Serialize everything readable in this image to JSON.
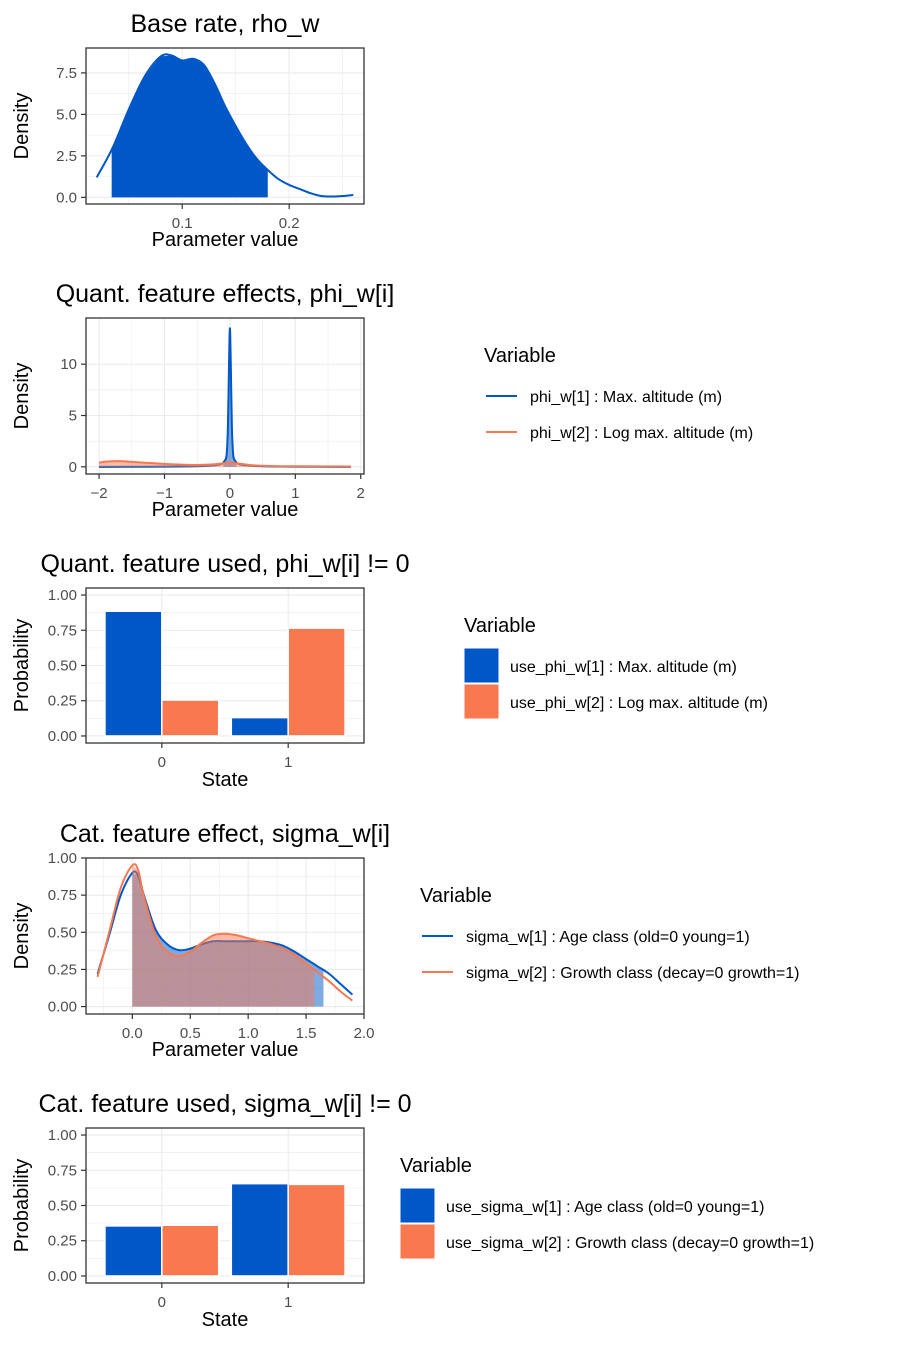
{
  "colors": {
    "series1": "#0057C8",
    "series2": "#F8794F",
    "grid": "#EBEBEB",
    "panel_border": "#333333",
    "tick_text": "#4D4D4D"
  },
  "chart_data": [
    {
      "type": "area",
      "title": "Base rate, rho_w",
      "xlabel": "Parameter value",
      "ylabel": "Density",
      "xlim": [
        0.01,
        0.27
      ],
      "ylim": [
        -0.4,
        9.0
      ],
      "xticks": [
        0.1,
        0.2
      ],
      "xtick_labels": [
        "0.1",
        "0.2"
      ],
      "yticks": [
        0,
        2.5,
        5,
        7.5
      ],
      "ytick_labels": [
        "0.0",
        "2.5",
        "5.0",
        "7.5"
      ],
      "series": [
        {
          "x": [
            0.02,
            0.035,
            0.05,
            0.065,
            0.08,
            0.09,
            0.1,
            0.11,
            0.12,
            0.13,
            0.14,
            0.15,
            0.16,
            0.17,
            0.18,
            0.19,
            0.2,
            0.21,
            0.22,
            0.23,
            0.24,
            0.25,
            0.26
          ],
          "y": [
            1.2,
            3.0,
            5.3,
            7.3,
            8.5,
            8.55,
            8.25,
            8.35,
            8.0,
            6.9,
            5.5,
            4.3,
            3.2,
            2.3,
            1.65,
            1.1,
            0.75,
            0.5,
            0.25,
            0.08,
            0.05,
            0.08,
            0.15
          ],
          "fill_from": 0.034,
          "fill_to": 0.18
        }
      ],
      "legend": null
    },
    {
      "type": "area",
      "title": "Quant. feature effects, phi_w[i]",
      "xlabel": "Parameter value",
      "ylabel": "Density",
      "xlim": [
        -2.2,
        2.05
      ],
      "ylim": [
        -0.7,
        14.5
      ],
      "xticks": [
        -2,
        -1,
        0,
        1,
        2
      ],
      "xtick_labels": [
        "−2",
        "−1",
        "0",
        "1",
        "2"
      ],
      "yticks": [
        0,
        5,
        10
      ],
      "ytick_labels": [
        "0",
        "5",
        "10"
      ],
      "series": [
        {
          "name": "phi_w[1] : Max. altitude (m)",
          "x": [
            -2.0,
            -1.0,
            -0.4,
            -0.15,
            -0.08,
            -0.05,
            -0.03,
            -0.015,
            0.0,
            0.015,
            0.03,
            0.05,
            0.08,
            0.15,
            0.4,
            1.0,
            1.85
          ],
          "y": [
            0.0,
            0.02,
            0.08,
            0.25,
            0.6,
            1.2,
            4.0,
            9.5,
            13.5,
            9.5,
            4.0,
            1.2,
            0.6,
            0.25,
            0.08,
            0.02,
            0.0
          ],
          "fill_from": -0.1,
          "fill_to": 0.1
        },
        {
          "name": "phi_w[2] : Log max. altitude (m)",
          "x": [
            -2.0,
            -1.9,
            -1.7,
            -1.5,
            -1.3,
            -1.1,
            -0.9,
            -0.7,
            -0.5,
            -0.3,
            -0.1,
            0.0,
            0.1,
            0.3,
            0.5,
            0.8,
            1.2,
            1.6,
            1.85
          ],
          "y": [
            0.4,
            0.5,
            0.55,
            0.48,
            0.4,
            0.32,
            0.25,
            0.2,
            0.18,
            0.22,
            0.35,
            0.45,
            0.35,
            0.18,
            0.1,
            0.06,
            0.05,
            0.04,
            0.03
          ],
          "fill_from": -2.0,
          "fill_to": 1.85
        }
      ],
      "legend": {
        "title": "Variable",
        "kind": "line"
      }
    },
    {
      "type": "bar",
      "title": "Quant. feature used, phi_w[i] != 0",
      "xlabel": "State",
      "ylabel": "Probability",
      "categories": [
        "0",
        "1"
      ],
      "ylim": [
        -0.05,
        1.05
      ],
      "yticks": [
        0,
        0.25,
        0.5,
        0.75,
        1.0
      ],
      "ytick_labels": [
        "0.00",
        "0.25",
        "0.50",
        "0.75",
        "1.00"
      ],
      "series": [
        {
          "name": "use_phi_w[1] : Max. altitude (m)",
          "values": [
            0.885,
            0.13
          ]
        },
        {
          "name": "use_phi_w[2] : Log max. altitude (m)",
          "values": [
            0.255,
            0.765
          ]
        }
      ],
      "legend": {
        "title": "Variable",
        "kind": "box"
      }
    },
    {
      "type": "area",
      "title": "Cat. feature effect, sigma_w[i]",
      "xlabel": "Parameter value",
      "ylabel": "Density",
      "xlim": [
        -0.4,
        2.0
      ],
      "ylim": [
        -0.05,
        1.0
      ],
      "xticks": [
        0,
        0.5,
        1.0,
        1.5,
        2.0
      ],
      "xtick_labels": [
        "0.0",
        "0.5",
        "1.0",
        "1.5",
        "2.0"
      ],
      "yticks": [
        0,
        0.25,
        0.5,
        0.75,
        1.0
      ],
      "ytick_labels": [
        "0.00",
        "0.25",
        "0.50",
        "0.75",
        "1.00"
      ],
      "series": [
        {
          "name": "sigma_w[1] : Age class (old=0 young=1)",
          "x": [
            -0.3,
            -0.2,
            -0.1,
            0.0,
            0.05,
            0.1,
            0.2,
            0.3,
            0.4,
            0.5,
            0.6,
            0.7,
            0.8,
            0.9,
            1.0,
            1.1,
            1.2,
            1.3,
            1.4,
            1.5,
            1.6,
            1.7,
            1.8,
            1.9
          ],
          "y": [
            0.22,
            0.48,
            0.75,
            0.9,
            0.88,
            0.75,
            0.52,
            0.42,
            0.38,
            0.39,
            0.42,
            0.44,
            0.44,
            0.44,
            0.44,
            0.44,
            0.43,
            0.41,
            0.37,
            0.32,
            0.27,
            0.22,
            0.15,
            0.08
          ],
          "fill_from": 0.0,
          "fill_to": 1.65
        },
        {
          "name": "sigma_w[2] : Growth class (decay=0 growth=1)",
          "x": [
            -0.3,
            -0.2,
            -0.1,
            0.0,
            0.05,
            0.1,
            0.2,
            0.3,
            0.4,
            0.5,
            0.6,
            0.7,
            0.8,
            0.9,
            1.0,
            1.1,
            1.2,
            1.3,
            1.4,
            1.5,
            1.6,
            1.7,
            1.8,
            1.9
          ],
          "y": [
            0.2,
            0.5,
            0.8,
            0.95,
            0.92,
            0.74,
            0.48,
            0.37,
            0.34,
            0.37,
            0.43,
            0.48,
            0.49,
            0.48,
            0.46,
            0.44,
            0.42,
            0.39,
            0.35,
            0.29,
            0.23,
            0.17,
            0.1,
            0.04
          ],
          "fill_from": 0.0,
          "fill_to": 1.57
        }
      ],
      "legend": {
        "title": "Variable",
        "kind": "line"
      }
    },
    {
      "type": "bar",
      "title": "Cat. feature used, sigma_w[i] != 0",
      "xlabel": "State",
      "ylabel": "Probability",
      "categories": [
        "0",
        "1"
      ],
      "ylim": [
        -0.05,
        1.05
      ],
      "yticks": [
        0,
        0.25,
        0.5,
        0.75,
        1.0
      ],
      "ytick_labels": [
        "0.00",
        "0.25",
        "0.50",
        "0.75",
        "1.00"
      ],
      "series": [
        {
          "name": "use_sigma_w[1] : Age class (old=0 young=1)",
          "values": [
            0.355,
            0.655
          ]
        },
        {
          "name": "use_sigma_w[2] : Growth class (decay=0 growth=1)",
          "values": [
            0.36,
            0.65
          ]
        }
      ],
      "legend": {
        "title": "Variable",
        "kind": "box"
      }
    }
  ]
}
